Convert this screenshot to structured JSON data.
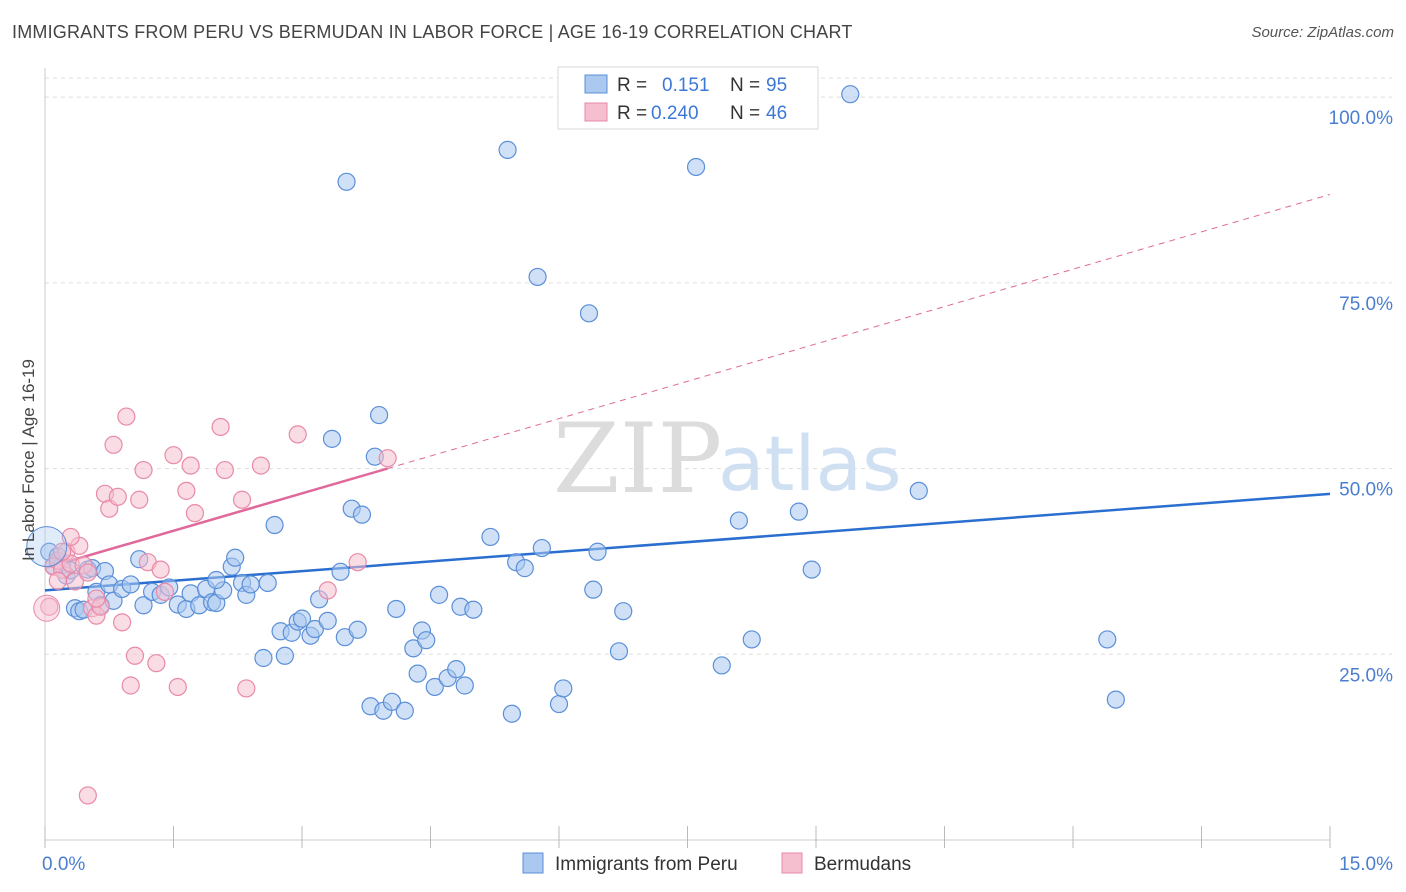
{
  "title": "IMMIGRANTS FROM PERU VS BERMUDAN IN LABOR FORCE | AGE 16-19 CORRELATION CHART",
  "source": "Source: ZipAtlas.com",
  "watermark": {
    "zip": "ZIP",
    "atlas": "atlas"
  },
  "colors": {
    "blue_fill": "#aac8f0",
    "blue_stroke": "#5b8fd8",
    "blue_line": "#2a6fcf",
    "pink_fill": "#f6bfd0",
    "pink_stroke": "#e88aa8",
    "pink_line": "#e0689a",
    "tick": "#4a7fd0",
    "grid": "#dddddd"
  },
  "legend": {
    "r_label": "R =",
    "n_label": "N =",
    "series": [
      {
        "r": "0.151",
        "n": "95"
      },
      {
        "r": "0.240",
        "n": "46"
      }
    ]
  },
  "chart_data": {
    "type": "scatter",
    "xlabel": "",
    "ylabel": "In Labor Force | Age 16-19",
    "xlim": [
      0,
      15
    ],
    "ylim": [
      0,
      105
    ],
    "x_tick_labels": [
      "0.0%",
      "15.0%"
    ],
    "y_ticks": [
      25,
      50,
      75,
      100
    ],
    "y_tick_labels": [
      "25.0%",
      "50.0%",
      "75.0%",
      "100.0%"
    ],
    "grid": true,
    "legend_position": "top-center",
    "series": [
      {
        "name": "Immigrants from Peru",
        "r": 0.151,
        "n": 95,
        "trend": {
          "x": [
            0,
            15
          ],
          "y": [
            33.6,
            46.6
          ],
          "dashed_from": null
        },
        "points": [
          [
            0.05,
            38.8
          ],
          [
            0.1,
            36.9
          ],
          [
            0.15,
            38.2
          ],
          [
            0.2,
            37.0
          ],
          [
            0.25,
            35.6
          ],
          [
            0.3,
            36.3
          ],
          [
            0.35,
            31.2
          ],
          [
            0.4,
            30.8
          ],
          [
            0.45,
            31.0
          ],
          [
            0.5,
            36.4
          ],
          [
            0.55,
            36.6
          ],
          [
            0.6,
            33.4
          ],
          [
            0.65,
            31.6
          ],
          [
            0.7,
            36.2
          ],
          [
            0.75,
            34.4
          ],
          [
            0.8,
            32.2
          ],
          [
            0.9,
            33.8
          ],
          [
            1.0,
            34.4
          ],
          [
            1.1,
            37.8
          ],
          [
            1.15,
            31.6
          ],
          [
            1.25,
            33.4
          ],
          [
            1.35,
            33.0
          ],
          [
            1.45,
            34.0
          ],
          [
            1.55,
            31.7
          ],
          [
            1.65,
            31.1
          ],
          [
            1.7,
            33.2
          ],
          [
            1.8,
            31.6
          ],
          [
            1.88,
            33.8
          ],
          [
            1.95,
            32.0
          ],
          [
            2.0,
            31.9
          ],
          [
            2.08,
            33.6
          ],
          [
            2.0,
            35.0
          ],
          [
            2.18,
            36.8
          ],
          [
            2.22,
            38.0
          ],
          [
            2.3,
            34.6
          ],
          [
            2.35,
            33.0
          ],
          [
            2.4,
            34.4
          ],
          [
            2.6,
            34.6
          ],
          [
            2.55,
            24.5
          ],
          [
            2.68,
            42.4
          ],
          [
            2.75,
            28.1
          ],
          [
            2.8,
            24.8
          ],
          [
            2.88,
            27.9
          ],
          [
            2.95,
            29.4
          ],
          [
            3.0,
            29.8
          ],
          [
            3.1,
            27.5
          ],
          [
            3.15,
            28.4
          ],
          [
            3.2,
            32.4
          ],
          [
            3.3,
            29.5
          ],
          [
            3.35,
            54.0
          ],
          [
            3.45,
            36.1
          ],
          [
            3.5,
            27.3
          ],
          [
            3.52,
            88.6
          ],
          [
            3.58,
            44.6
          ],
          [
            3.65,
            28.3
          ],
          [
            3.7,
            43.8
          ],
          [
            3.8,
            18.0
          ],
          [
            3.85,
            51.6
          ],
          [
            3.9,
            57.2
          ],
          [
            3.95,
            17.4
          ],
          [
            4.05,
            18.6
          ],
          [
            4.1,
            31.1
          ],
          [
            4.2,
            17.4
          ],
          [
            4.3,
            25.8
          ],
          [
            4.35,
            22.4
          ],
          [
            4.4,
            28.2
          ],
          [
            4.45,
            26.9
          ],
          [
            4.55,
            20.6
          ],
          [
            4.6,
            33.0
          ],
          [
            4.7,
            21.8
          ],
          [
            4.8,
            23.0
          ],
          [
            4.85,
            31.4
          ],
          [
            4.9,
            20.8
          ],
          [
            5.0,
            31.0
          ],
          [
            5.2,
            40.8
          ],
          [
            5.4,
            92.9
          ],
          [
            5.45,
            17.0
          ],
          [
            5.5,
            37.4
          ],
          [
            5.6,
            36.6
          ],
          [
            5.75,
            75.8
          ],
          [
            5.8,
            39.3
          ],
          [
            6.0,
            18.3
          ],
          [
            6.05,
            20.4
          ],
          [
            6.35,
            70.9
          ],
          [
            6.4,
            33.7
          ],
          [
            6.45,
            38.8
          ],
          [
            6.7,
            25.4
          ],
          [
            6.75,
            30.8
          ],
          [
            7.6,
            90.6
          ],
          [
            7.9,
            23.5
          ],
          [
            8.1,
            43.0
          ],
          [
            8.25,
            27.0
          ],
          [
            8.8,
            44.2
          ],
          [
            8.95,
            36.4
          ],
          [
            9.4,
            100.4
          ],
          [
            10.2,
            47.0
          ],
          [
            12.4,
            27.0
          ],
          [
            12.5,
            18.9
          ]
        ]
      },
      {
        "name": "Bermudans",
        "r": 0.24,
        "n": 46,
        "trend": {
          "x": [
            0,
            15
          ],
          "y": [
            36.6,
            86.9
          ],
          "dashed_from": 4.0
        },
        "points": [
          [
            0.05,
            31.4
          ],
          [
            0.1,
            36.8
          ],
          [
            0.15,
            37.6
          ],
          [
            0.2,
            36.4
          ],
          [
            0.25,
            38.8
          ],
          [
            0.3,
            37.2
          ],
          [
            0.35,
            34.8
          ],
          [
            0.4,
            39.6
          ],
          [
            0.45,
            37.0
          ],
          [
            0.5,
            36.0
          ],
          [
            0.55,
            31.2
          ],
          [
            0.6,
            30.2
          ],
          [
            0.65,
            31.4
          ],
          [
            0.7,
            46.6
          ],
          [
            0.75,
            44.6
          ],
          [
            0.8,
            53.2
          ],
          [
            0.85,
            46.2
          ],
          [
            0.9,
            29.3
          ],
          [
            0.95,
            57.0
          ],
          [
            1.0,
            20.8
          ],
          [
            1.05,
            24.8
          ],
          [
            1.1,
            45.8
          ],
          [
            1.15,
            49.8
          ],
          [
            1.2,
            37.4
          ],
          [
            1.3,
            23.8
          ],
          [
            1.35,
            36.4
          ],
          [
            1.4,
            33.4
          ],
          [
            1.5,
            51.8
          ],
          [
            1.55,
            20.6
          ],
          [
            1.65,
            47.0
          ],
          [
            1.7,
            50.4
          ],
          [
            1.75,
            44.0
          ],
          [
            2.05,
            55.6
          ],
          [
            2.1,
            49.8
          ],
          [
            2.3,
            45.8
          ],
          [
            2.35,
            20.4
          ],
          [
            2.52,
            50.4
          ],
          [
            2.95,
            54.6
          ],
          [
            3.3,
            33.6
          ],
          [
            3.65,
            37.4
          ],
          [
            4.0,
            51.4
          ],
          [
            0.5,
            6.0
          ],
          [
            0.3,
            40.8
          ],
          [
            0.2,
            38.8
          ],
          [
            0.6,
            32.5
          ],
          [
            0.15,
            34.9
          ]
        ]
      }
    ]
  },
  "bottom_legend": [
    "Immigrants from Peru",
    "Bermudans"
  ]
}
